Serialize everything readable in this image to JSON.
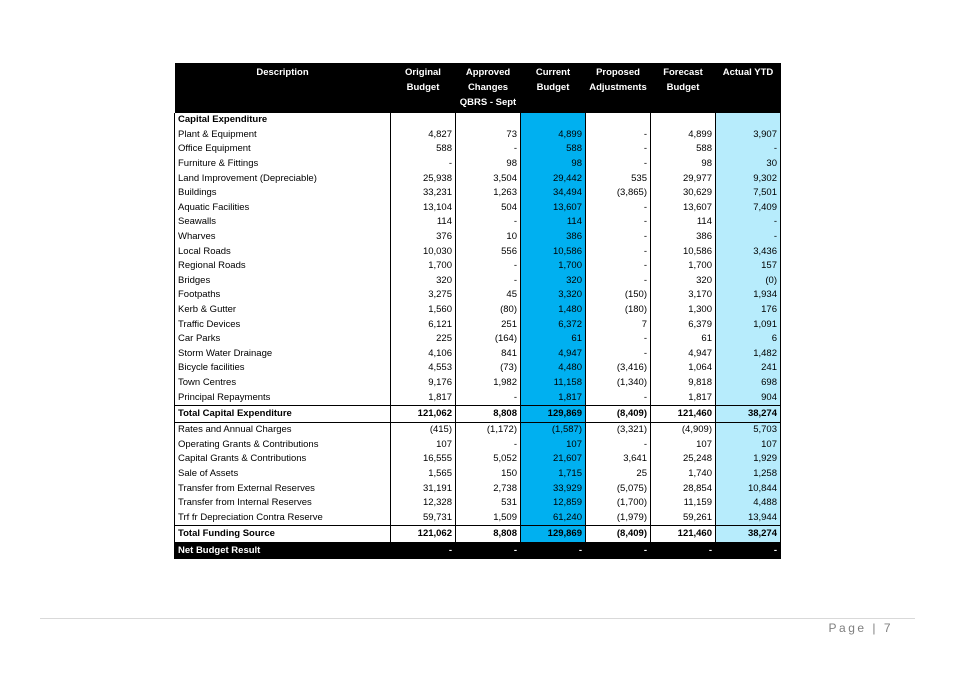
{
  "table": {
    "headers": [
      "Description",
      "Original\nBudget",
      "Approved\nChanges\nQBRS - Sept",
      "Current\nBudget",
      "Proposed\nAdjustments",
      "Forecast\nBudget",
      "Actual YTD"
    ],
    "section_title": "Capital Expenditure",
    "expenditure_rows": [
      [
        "Plant & Equipment",
        "4,827",
        "73",
        "4,899",
        "-",
        "4,899",
        "3,907"
      ],
      [
        "Office Equipment",
        "588",
        "-",
        "588",
        "-",
        "588",
        "-"
      ],
      [
        "Furniture & Fittings",
        "-",
        "98",
        "98",
        "-",
        "98",
        "30"
      ],
      [
        "Land Improvement (Depreciable)",
        "25,938",
        "3,504",
        "29,442",
        "535",
        "29,977",
        "9,302"
      ],
      [
        "Buildings",
        "33,231",
        "1,263",
        "34,494",
        "(3,865)",
        "30,629",
        "7,501"
      ],
      [
        "Aquatic Facilities",
        "13,104",
        "504",
        "13,607",
        "-",
        "13,607",
        "7,409"
      ],
      [
        "Seawalls",
        "114",
        "-",
        "114",
        "-",
        "114",
        "-"
      ],
      [
        "Wharves",
        "376",
        "10",
        "386",
        "-",
        "386",
        "-"
      ],
      [
        "Local Roads",
        "10,030",
        "556",
        "10,586",
        "-",
        "10,586",
        "3,436"
      ],
      [
        "Regional Roads",
        "1,700",
        "-",
        "1,700",
        "-",
        "1,700",
        "157"
      ],
      [
        "Bridges",
        "320",
        "-",
        "320",
        "-",
        "320",
        "(0)"
      ],
      [
        "Footpaths",
        "3,275",
        "45",
        "3,320",
        "(150)",
        "3,170",
        "1,934"
      ],
      [
        "Kerb & Gutter",
        "1,560",
        "(80)",
        "1,480",
        "(180)",
        "1,300",
        "176"
      ],
      [
        "Traffic Devices",
        "6,121",
        "251",
        "6,372",
        "7",
        "6,379",
        "1,091"
      ],
      [
        "Car Parks",
        "225",
        "(164)",
        "61",
        "-",
        "61",
        "6"
      ],
      [
        "Storm Water Drainage",
        "4,106",
        "841",
        "4,947",
        "-",
        "4,947",
        "1,482"
      ],
      [
        "Bicycle facilities",
        "4,553",
        "(73)",
        "4,480",
        "(3,416)",
        "1,064",
        "241"
      ],
      [
        "Town Centres",
        "9,176",
        "1,982",
        "11,158",
        "(1,340)",
        "9,818",
        "698"
      ],
      [
        "Principal Repayments",
        "1,817",
        "-",
        "1,817",
        "-",
        "1,817",
        "904"
      ]
    ],
    "total_expenditure": [
      "Total Capital Expenditure",
      "121,062",
      "8,808",
      "129,869",
      "(8,409)",
      "121,460",
      "38,274"
    ],
    "funding_rows": [
      [
        "Rates and Annual Charges",
        "(415)",
        "(1,172)",
        "(1,587)",
        "(3,321)",
        "(4,909)",
        "5,703"
      ],
      [
        "Operating Grants & Contributions",
        "107",
        "-",
        "107",
        "-",
        "107",
        "107"
      ],
      [
        "Capital Grants & Contributions",
        "16,555",
        "5,052",
        "21,607",
        "3,641",
        "25,248",
        "1,929"
      ],
      [
        "Sale of Assets",
        "1,565",
        "150",
        "1,715",
        "25",
        "1,740",
        "1,258"
      ],
      [
        "Transfer from External Reserves",
        "31,191",
        "2,738",
        "33,929",
        "(5,075)",
        "28,854",
        "10,844"
      ],
      [
        "Transfer from Internal Reserves",
        "12,328",
        "531",
        "12,859",
        "(1,700)",
        "11,159",
        "4,488"
      ],
      [
        "Trf fr Depreciation Contra Reserve",
        "59,731",
        "1,509",
        "61,240",
        "(1,979)",
        "59,261",
        "13,944"
      ]
    ],
    "total_funding": [
      "Total Funding Source",
      "121,062",
      "8,808",
      "129,869",
      "(8,409)",
      "121,460",
      "38,274"
    ],
    "net_result": [
      "Net Budget Result",
      "-",
      "-",
      "-",
      "-",
      "-",
      "-"
    ]
  },
  "colors": {
    "current_budget_fill": "#00b0f0",
    "actual_ytd_fill": "#b7ecfc",
    "header_fill": "#000000"
  },
  "footer": {
    "page_label": "Page | 7"
  }
}
